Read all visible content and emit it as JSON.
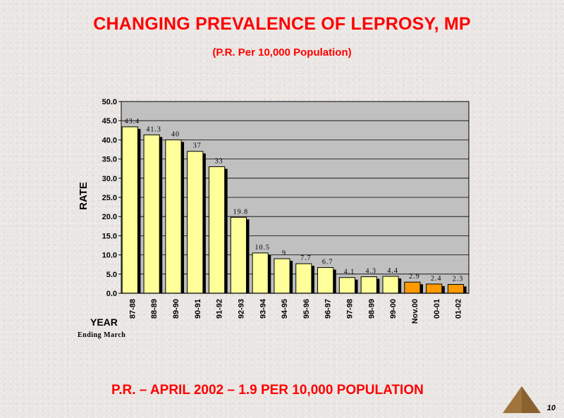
{
  "slide": {
    "title": "CHANGING PREVALENCE OF LEPROSY, MP",
    "subtitle": "(P.R. Per 10,000 Population)",
    "footer": "P.R. – APRIL 2002 – 1.9 PER 10,000 POPULATION",
    "page_number": "10",
    "nav_icon": "triangle-next-icon"
  },
  "chart_data": {
    "type": "bar",
    "title": "",
    "ylabel": "RATE",
    "xlabel": "YEAR",
    "xlabel_sub": "Ending March",
    "ylim": [
      0,
      50
    ],
    "ytick_step": 5,
    "grid": true,
    "categories": [
      "87-88",
      "88-89",
      "89-90",
      "90-91",
      "91-92",
      "92-93",
      "93-94",
      "94-95",
      "95-96",
      "96-97",
      "97-98",
      "98-99",
      "99-00",
      "Nov.00",
      "00-01",
      "01-02"
    ],
    "values": [
      43.4,
      41.3,
      40,
      37,
      33,
      19.8,
      10.5,
      9,
      7.7,
      6.7,
      4.1,
      4.3,
      4.4,
      2.9,
      2.4,
      2.3
    ],
    "value_labels": [
      "43.4",
      "41.3",
      "40",
      "37",
      "33",
      "19.8",
      "10.5",
      "9",
      "7.7",
      "6.7",
      "4.1",
      "4.3",
      "4.4",
      "2.9",
      "2.4",
      "2.3"
    ],
    "highlight_from_index": 13,
    "colors": {
      "bar": "#ffff99",
      "bar_highlight": "#ff9900",
      "bar_shadow": "#000000",
      "plot_bg": "#c0c0c0",
      "grid": "#000000"
    }
  }
}
